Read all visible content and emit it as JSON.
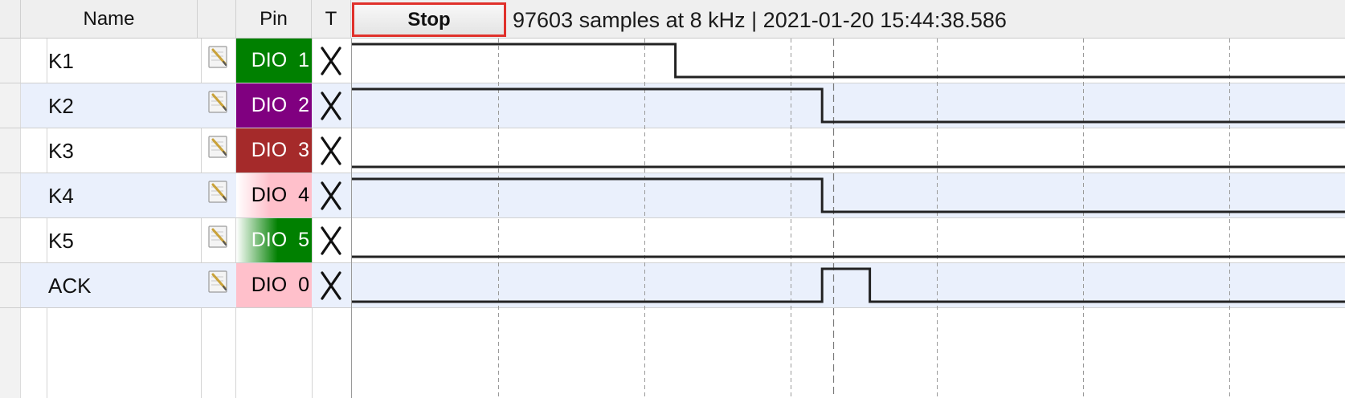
{
  "header": {
    "name_col": "Name",
    "pin_col": "Pin",
    "trigger_col": "T",
    "stop_label": "Stop",
    "status": "97603 samples at 8 kHz | 2021-01-20 15:44:38.586"
  },
  "channels": [
    {
      "name": "K1",
      "pin": "DIO  1",
      "pin_bg": "#008000",
      "pin_fg": "#ffffff",
      "trigger_icon": "x-icon"
    },
    {
      "name": "K2",
      "pin": "DIO  2",
      "pin_bg": "#800080",
      "pin_fg": "#ffffff",
      "trigger_icon": "x-icon"
    },
    {
      "name": "K3",
      "pin": "DIO  3",
      "pin_bg": "#a52a2a",
      "pin_fg": "#ffffff",
      "trigger_icon": "x-icon"
    },
    {
      "name": "K4",
      "pin": "DIO  4",
      "pin_bg": "#ffc0cb",
      "pin_fg": "#000000",
      "trigger_icon": "x-icon"
    },
    {
      "name": "K5",
      "pin": "DIO  5",
      "pin_bg": "#008000",
      "pin_fg": "#ffffff",
      "trigger_icon": "x-icon"
    },
    {
      "name": "ACK",
      "pin": "DIO  0",
      "pin_bg": "#ffc0cb",
      "pin_fg": "#000000",
      "trigger_icon": "x-icon"
    }
  ],
  "waveforms": [
    {
      "channel": "K1",
      "transitions": [
        {
          "t": 0.0,
          "level": 1
        },
        {
          "t": 0.366,
          "level": 0
        }
      ]
    },
    {
      "channel": "K2",
      "transitions": [
        {
          "t": 0.0,
          "level": 1
        },
        {
          "t": 0.532,
          "level": 0
        }
      ]
    },
    {
      "channel": "K3",
      "transitions": [
        {
          "t": 0.0,
          "level": 0
        }
      ]
    },
    {
      "channel": "K4",
      "transitions": [
        {
          "t": 0.0,
          "level": 1
        },
        {
          "t": 0.532,
          "level": 0
        }
      ]
    },
    {
      "channel": "K5",
      "transitions": [
        {
          "t": 0.0,
          "level": 0
        }
      ]
    },
    {
      "channel": "ACK",
      "transitions": [
        {
          "t": 0.0,
          "level": 0
        },
        {
          "t": 0.532,
          "level": 1
        },
        {
          "t": 0.586,
          "level": 0
        }
      ]
    }
  ],
  "cursor_t": 0.545,
  "colors": {
    "accent_stop_border": "#e0312b",
    "row_alt": "#eaf0fc",
    "trace": "#222222"
  },
  "icons": {
    "edit": "pencil-notepad-icon",
    "trigger": "x-icon"
  }
}
